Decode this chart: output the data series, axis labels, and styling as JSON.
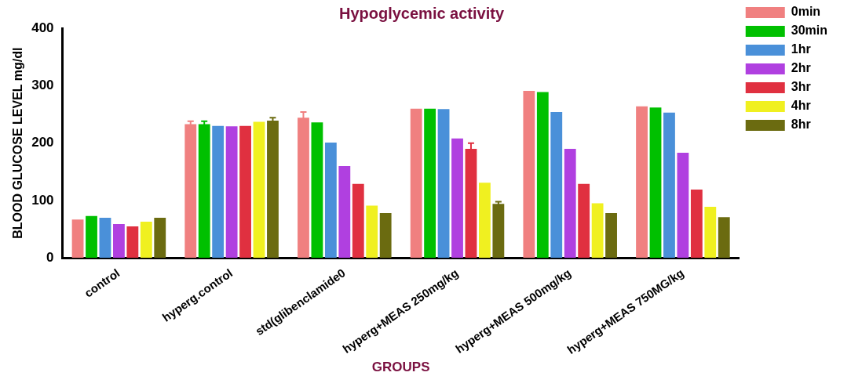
{
  "chart_data": {
    "type": "bar",
    "title": "Hypoglycemic activity",
    "xlabel": "GROUPS",
    "ylabel": "BLOOD GLUCOSE LEVEL mg/dl",
    "categories": [
      "control",
      "hyperg.control",
      "std(glibenclamide0",
      "hyperg+MEAS 250mg/kg",
      "hyperg+MEAS 500mg/kg",
      "hyperg+MEAS 750MG/kg"
    ],
    "series": [
      {
        "name": "0min",
        "color": "#f08080",
        "values": [
          67,
          233,
          244,
          260,
          291,
          264
        ],
        "errors": [
          null,
          5,
          10,
          null,
          null,
          null
        ]
      },
      {
        "name": "30min",
        "color": "#00c000",
        "values": [
          73,
          233,
          236,
          260,
          289,
          262
        ],
        "errors": [
          null,
          5,
          null,
          null,
          null,
          null
        ]
      },
      {
        "name": "1hr",
        "color": "#4a90d9",
        "values": [
          70,
          230,
          201,
          259,
          254,
          253
        ]
      },
      {
        "name": "2hr",
        "color": "#b040e0",
        "values": [
          59,
          229,
          160,
          208,
          190,
          183
        ]
      },
      {
        "name": "3hr",
        "color": "#e03040",
        "values": [
          55,
          230,
          129,
          190,
          129,
          119
        ],
        "errors": [
          null,
          null,
          null,
          10,
          null,
          null
        ]
      },
      {
        "name": "4hr",
        "color": "#f0f020",
        "values": [
          63,
          237,
          91,
          131,
          95,
          89
        ]
      },
      {
        "name": "8hr",
        "color": "#6b6b10",
        "values": [
          70,
          239,
          78,
          94,
          78,
          71
        ],
        "errors": [
          null,
          5,
          null,
          4,
          null,
          null
        ]
      }
    ],
    "ylim": [
      0,
      400
    ],
    "yticks": [
      0,
      100,
      200,
      300,
      400
    ],
    "grid": false,
    "legend": "top right"
  }
}
